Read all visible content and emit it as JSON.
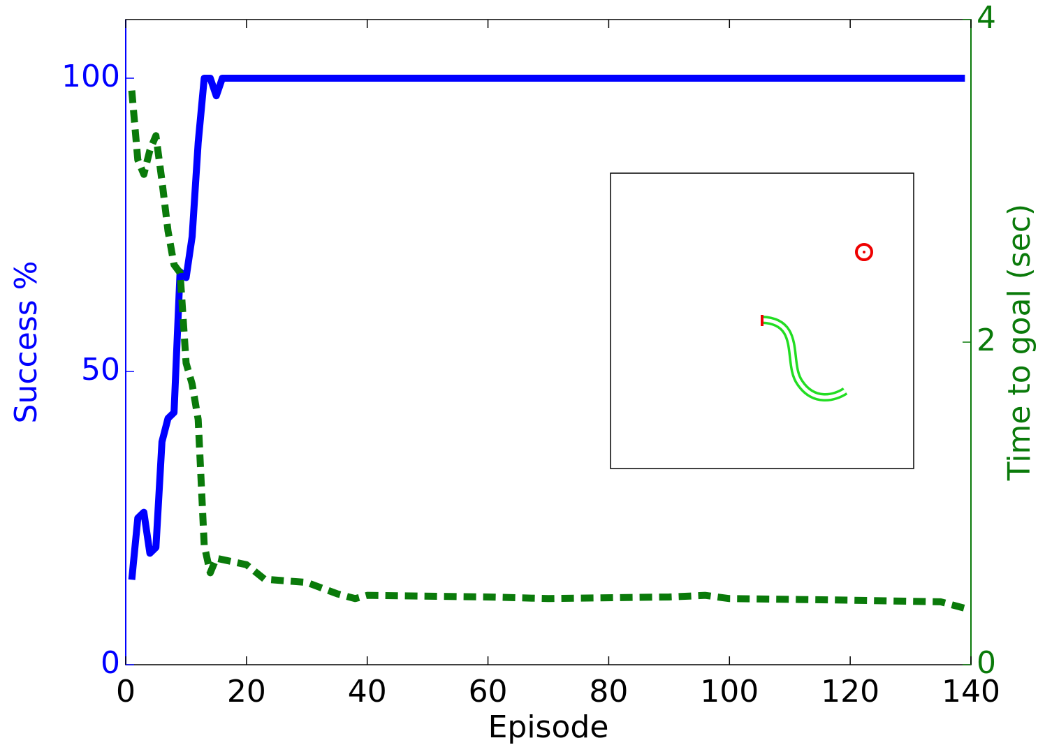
{
  "chart_data": {
    "type": "line",
    "xlabel": "Episode",
    "ylabel": "Success %",
    "y2label": "Time to goal (sec)",
    "xlim": [
      0,
      140
    ],
    "xticks": [
      0,
      20,
      40,
      60,
      80,
      100,
      120,
      140
    ],
    "ylim": [
      0,
      110
    ],
    "yticks": [
      0,
      50,
      100
    ],
    "y2lim": [
      0,
      4
    ],
    "y2ticks": [
      0,
      2,
      4
    ],
    "series": [
      {
        "color": "#0000ff",
        "style": "solid",
        "x": [
          1,
          2,
          3,
          4,
          5,
          6,
          7,
          8,
          9,
          10,
          11,
          12,
          13,
          14,
          15,
          16,
          139
        ],
        "values": [
          14.5,
          25,
          26,
          19,
          20,
          38,
          42,
          43,
          67,
          66,
          73,
          89,
          100,
          100,
          97,
          100,
          100
        ]
      },
      {
        "color": "#0a7a0a",
        "style": "dashed",
        "axis": "y2",
        "x": [
          1,
          2,
          3,
          4,
          5,
          6,
          7,
          8,
          9,
          10,
          11,
          12,
          13,
          14,
          15,
          20,
          23,
          30,
          35,
          38,
          40,
          60,
          70,
          90,
          96,
          100,
          120,
          135,
          139
        ],
        "values": [
          3.56,
          3.13,
          3.04,
          3.19,
          3.28,
          3.0,
          2.69,
          2.48,
          2.43,
          1.87,
          1.74,
          1.52,
          0.74,
          0.57,
          0.66,
          0.62,
          0.53,
          0.51,
          0.44,
          0.41,
          0.43,
          0.42,
          0.41,
          0.42,
          0.43,
          0.41,
          0.4,
          0.39,
          0.35
        ]
      }
    ]
  }
}
